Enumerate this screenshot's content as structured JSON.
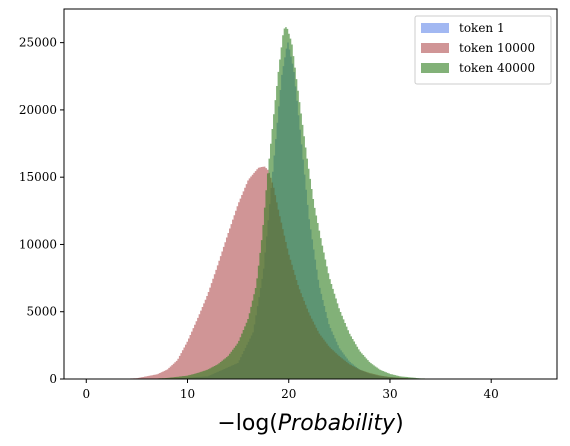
{
  "chart_data": {
    "type": "histogram",
    "title": "",
    "xlabel_parts": [
      "−log(",
      "Probability",
      ")"
    ],
    "ylabel": "",
    "xlim": [
      -2.2,
      46.5
    ],
    "ylim": [
      0,
      27500
    ],
    "xticks": [
      0,
      10,
      20,
      30,
      40
    ],
    "yticks": [
      0,
      5000,
      10000,
      15000,
      20000,
      25000
    ],
    "grid": false,
    "legend_position": "top-right",
    "series": [
      {
        "name": "token 1",
        "color": "#6488ea",
        "alpha": 0.6,
        "profile": [
          [
            8,
            0
          ],
          [
            12,
            200
          ],
          [
            15,
            1200
          ],
          [
            16.5,
            3500
          ],
          [
            17.5,
            8000
          ],
          [
            18.5,
            16000
          ],
          [
            19.3,
            22500
          ],
          [
            19.9,
            25100
          ],
          [
            20.5,
            23000
          ],
          [
            21.2,
            18000
          ],
          [
            22,
            12000
          ],
          [
            23,
            7000
          ],
          [
            24,
            4000
          ],
          [
            25,
            2300
          ],
          [
            26,
            1300
          ],
          [
            27,
            700
          ],
          [
            28,
            380
          ],
          [
            29,
            200
          ],
          [
            31,
            60
          ],
          [
            33,
            0
          ]
        ]
      },
      {
        "name": "token 10000",
        "color": "#b04e50",
        "alpha": 0.6,
        "profile": [
          [
            3,
            0
          ],
          [
            5,
            60
          ],
          [
            7,
            350
          ],
          [
            8,
            700
          ],
          [
            9,
            1400
          ],
          [
            10,
            2800
          ],
          [
            11,
            4500
          ],
          [
            12,
            6300
          ],
          [
            13,
            8500
          ],
          [
            14,
            10800
          ],
          [
            15,
            13000
          ],
          [
            16,
            14800
          ],
          [
            17,
            15700
          ],
          [
            17.6,
            15800
          ],
          [
            18,
            15500
          ],
          [
            18.5,
            14300
          ],
          [
            19,
            12500
          ],
          [
            19.5,
            10900
          ],
          [
            20,
            9300
          ],
          [
            21,
            6800
          ],
          [
            22,
            4900
          ],
          [
            23,
            3400
          ],
          [
            24,
            2400
          ],
          [
            25,
            1700
          ],
          [
            26,
            1100
          ],
          [
            27,
            700
          ],
          [
            28,
            450
          ],
          [
            29,
            260
          ],
          [
            30,
            150
          ],
          [
            32,
            50
          ],
          [
            35,
            0
          ]
        ]
      },
      {
        "name": "token 40000",
        "color": "#2e7d1e",
        "alpha": 0.6,
        "profile": [
          [
            6,
            0
          ],
          [
            8,
            80
          ],
          [
            10,
            250
          ],
          [
            11,
            450
          ],
          [
            12,
            700
          ],
          [
            13,
            1100
          ],
          [
            14,
            1700
          ],
          [
            15,
            2700
          ],
          [
            16,
            4500
          ],
          [
            16.8,
            7000
          ],
          [
            17.4,
            10800
          ],
          [
            17.9,
            15100
          ],
          [
            18.5,
            19500
          ],
          [
            19,
            23000
          ],
          [
            19.5,
            26000
          ],
          [
            19.8,
            26200
          ],
          [
            20.3,
            25000
          ],
          [
            21,
            21000
          ],
          [
            21.8,
            16500
          ],
          [
            22.5,
            13000
          ],
          [
            23.3,
            10000
          ],
          [
            24,
            7600
          ],
          [
            25,
            5200
          ],
          [
            26,
            3400
          ],
          [
            27,
            2100
          ],
          [
            28,
            1250
          ],
          [
            29,
            700
          ],
          [
            30,
            380
          ],
          [
            31,
            200
          ],
          [
            33,
            50
          ],
          [
            36,
            0
          ]
        ]
      }
    ]
  }
}
